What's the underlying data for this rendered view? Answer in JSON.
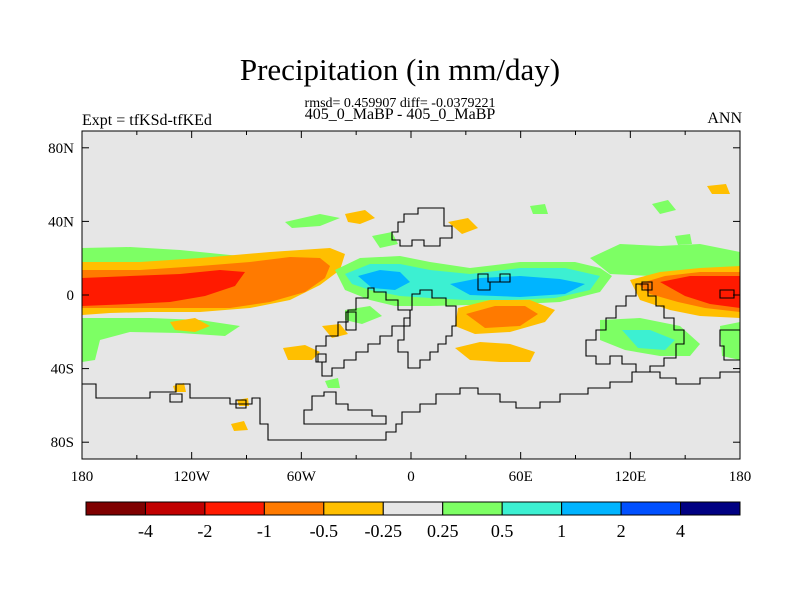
{
  "title": "Precipitation (in mm/day)",
  "stats": "rmsd= 0.459907 diff= -0.0379221",
  "subtitle": "405_0_MaBP - 405_0_MaBP",
  "left_label": "Expt = tfKSd-tfKEd",
  "right_label": "ANN",
  "lat_ticks": [
    {
      "label": "80N",
      "lat": 80
    },
    {
      "label": "40N",
      "lat": 40
    },
    {
      "label": "0",
      "lat": 0
    },
    {
      "label": "40S",
      "lat": -40
    },
    {
      "label": "80S",
      "lat": -80
    }
  ],
  "lon_ticks": [
    {
      "label": "180",
      "lon": -180
    },
    {
      "label": "120W",
      "lon": -120
    },
    {
      "label": "60W",
      "lon": -60
    },
    {
      "label": "0",
      "lon": 0
    },
    {
      "label": "60E",
      "lon": 60
    },
    {
      "label": "120E",
      "lon": 120
    },
    {
      "label": "180",
      "lon": 180
    }
  ],
  "colorbar": {
    "colors": [
      "#7f0000",
      "#c10000",
      "#ff1a00",
      "#ff7a00",
      "#ffbf00",
      "#e6e6e6",
      "#7dff64",
      "#3cf0d2",
      "#00b4ff",
      "#0050ff",
      "#000082"
    ],
    "labels": [
      "-4",
      "-2",
      "-1",
      "-0.5",
      "-0.25",
      "0.25",
      "0.5",
      "1",
      "2",
      "4"
    ]
  },
  "map_colors": {
    "background": "#e6e6e6",
    "red": "#ff1a00",
    "orange": "#ff7a00",
    "yellow": "#ffbf00",
    "green": "#7dff64",
    "cyan": "#3cf0d2",
    "lightblue": "#00b4ff",
    "coast": "#000000"
  }
}
